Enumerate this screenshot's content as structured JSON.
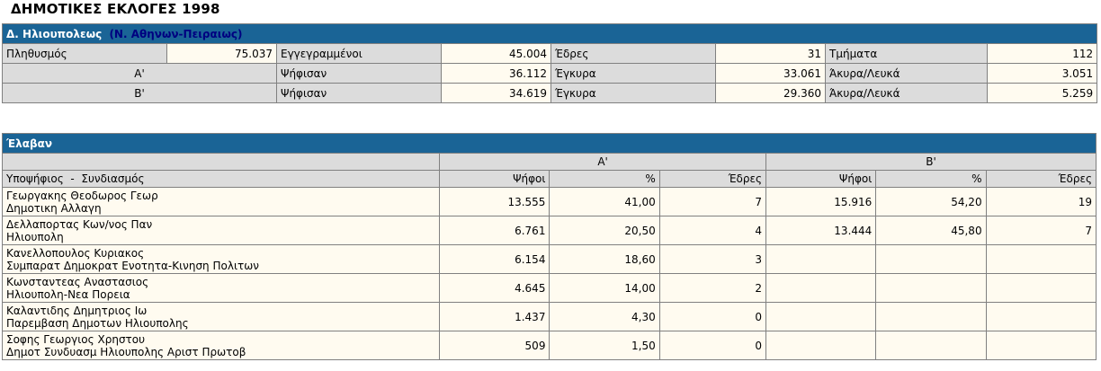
{
  "title": "ΔΗΜΟΤΙΚΕΣ ΕΚΛΟΓΕΣ 1998",
  "municipality": {
    "name": "Δ. Ηλιουπολεως",
    "prefecture": "(Ν. Αθηνων-Πειραιως)"
  },
  "summary": {
    "population_label": "Πληθυσμός",
    "population": "75.037",
    "registered_label": "Εγγεγραμμένοι",
    "registered": "45.004",
    "seats_label": "Έδρες",
    "seats": "31",
    "sections_label": "Τμήματα",
    "sections": "112",
    "rounds": [
      {
        "round": "Α'",
        "voted_label": "Ψήφισαν",
        "voted": "36.112",
        "valid_label": "Έγκυρα",
        "valid": "33.061",
        "invalid_label": "Άκυρα/Λευκά",
        "invalid": "3.051"
      },
      {
        "round": "Β'",
        "voted_label": "Ψήφισαν",
        "voted": "34.619",
        "valid_label": "Έγκυρα",
        "valid": "29.360",
        "invalid_label": "Άκυρα/Λευκά",
        "invalid": "5.259"
      }
    ]
  },
  "results": {
    "header": "Έλαβαν",
    "round_a": "Α'",
    "round_b": "Β'",
    "col_candidate": "Υποψήφιος  -  Συνδιασμός",
    "col_votes": "Ψήφοι",
    "col_pct": "%",
    "col_seats": "Έδρες",
    "rows": [
      {
        "name": "Γεωργακης Θεοδωρος Γεωρ",
        "list": "Δημοτικη Αλλαγη",
        "a_votes": "13.555",
        "a_pct": "41,00",
        "a_seats": "7",
        "b_votes": "15.916",
        "b_pct": "54,20",
        "b_seats": "19"
      },
      {
        "name": "Δελλαπορτας Κων/νος Παν",
        "list": "Ηλιουπολη",
        "a_votes": "6.761",
        "a_pct": "20,50",
        "a_seats": "4",
        "b_votes": "13.444",
        "b_pct": "45,80",
        "b_seats": "7"
      },
      {
        "name": "Κανελλοπουλος Κυριακος",
        "list": "Συμπαρατ Δημοκρατ Ενοτητα-Κινηση Πολιτων",
        "a_votes": "6.154",
        "a_pct": "18,60",
        "a_seats": "3",
        "b_votes": "",
        "b_pct": "",
        "b_seats": ""
      },
      {
        "name": "Κωνσταντεας Αναστασιος",
        "list": "Ηλιουπολη-Νεα Πορεια",
        "a_votes": "4.645",
        "a_pct": "14,00",
        "a_seats": "2",
        "b_votes": "",
        "b_pct": "",
        "b_seats": ""
      },
      {
        "name": "Καλαντιδης Δημητριος Ιω",
        "list": "Παρεμβαση Δημοτων Ηλιουπολης",
        "a_votes": "1.437",
        "a_pct": "4,30",
        "a_seats": "0",
        "b_votes": "",
        "b_pct": "",
        "b_seats": ""
      },
      {
        "name": "Σοφης Γεωργιος Χρηστου",
        "list": "Δημοτ Συνδυασμ Ηλιουπολης Αριστ Πρωτοβ",
        "a_votes": "509",
        "a_pct": "1,50",
        "a_seats": "0",
        "b_votes": "",
        "b_pct": "",
        "b_seats": ""
      }
    ]
  }
}
